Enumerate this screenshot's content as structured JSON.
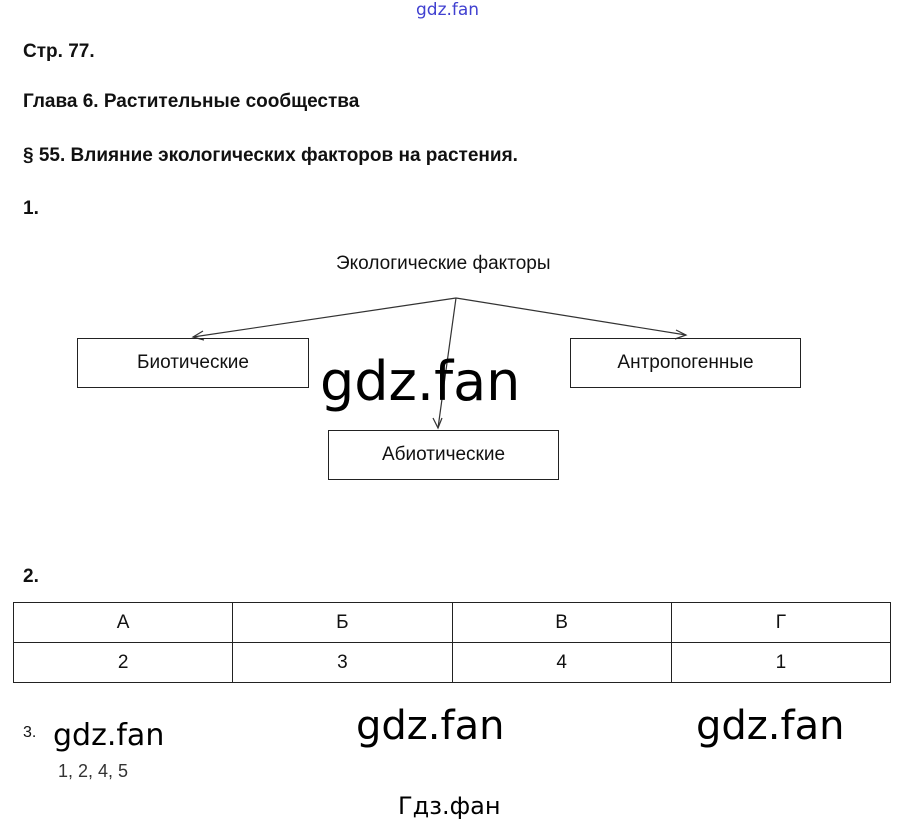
{
  "watermarks": {
    "top": "gdz.fan",
    "center": "gdz.fan",
    "row3_left": "gdz.fan",
    "row3_mid": "gdz.fan",
    "row3_right": "gdz.fan",
    "bottom": "Гдз.фан",
    "top_color": "#4040d0"
  },
  "header": {
    "page": "Стр. 77.",
    "chapter": "Глава 6. Растительные сообщества",
    "section": "§ 55. Влияние экологических факторов на растения."
  },
  "task1": {
    "number": "1.",
    "root": "Экологические факторы",
    "children": [
      "Биотические",
      "Абиотические",
      "Антропогенные"
    ]
  },
  "task2": {
    "number": "2.",
    "headers": [
      "А",
      "Б",
      "В",
      "Г"
    ],
    "values": [
      "2",
      "3",
      "4",
      "1"
    ]
  },
  "task3": {
    "number": "3.",
    "answer": "1, 2, 4, 5"
  }
}
